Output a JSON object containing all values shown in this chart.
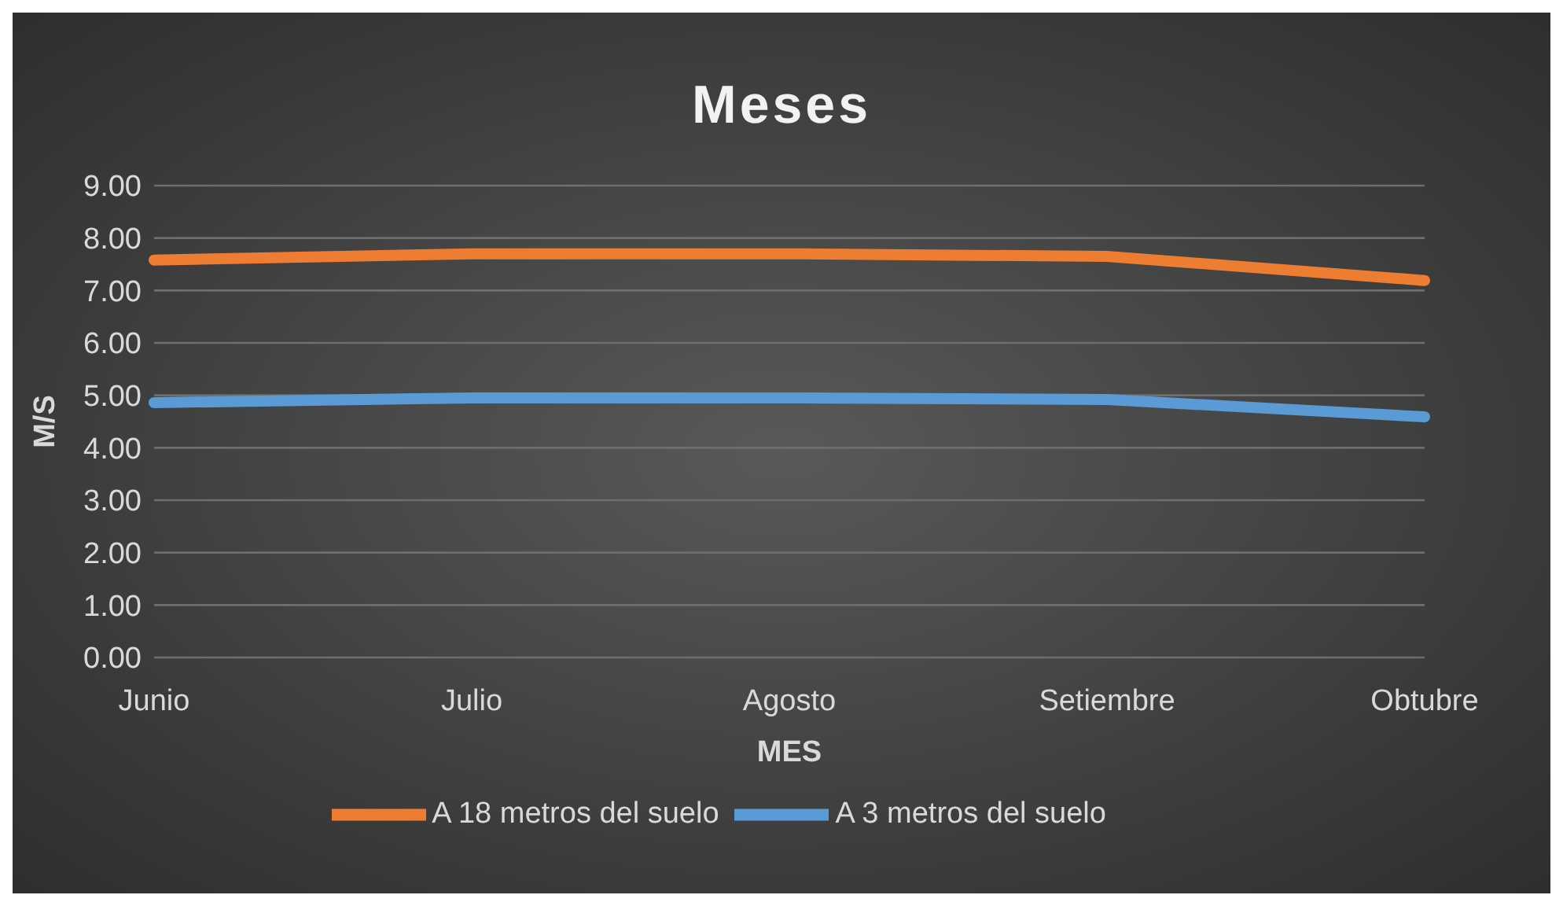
{
  "chart_data": {
    "type": "line",
    "title": "Meses",
    "xlabel": "MES",
    "ylabel": "M/S",
    "categories": [
      "Junio",
      "Julio",
      "Agosto",
      "Setiembre",
      "Obtubre"
    ],
    "series": [
      {
        "name": "A 3 metros del suelo",
        "color": "#5b9bd5",
        "values": [
          4.86,
          4.95,
          4.95,
          4.92,
          4.59
        ]
      },
      {
        "name": "A 18 metros del suelo",
        "color": "#ed7d31",
        "values": [
          7.58,
          7.7,
          7.7,
          7.65,
          7.19
        ]
      }
    ],
    "ylim": [
      0,
      9
    ],
    "yticks": [
      {
        "value": 0,
        "label": "0.00"
      },
      {
        "value": 1,
        "label": "1.00"
      },
      {
        "value": 2,
        "label": "2.00"
      },
      {
        "value": 3,
        "label": "3.00"
      },
      {
        "value": 4,
        "label": "4.00"
      },
      {
        "value": 5,
        "label": "5.00"
      },
      {
        "value": 6,
        "label": "6.00"
      },
      {
        "value": 7,
        "label": "7.00"
      },
      {
        "value": 8,
        "label": "8.00"
      },
      {
        "value": 9,
        "label": "9.00"
      }
    ],
    "grid": "y",
    "legend": "bottom",
    "marker": "none",
    "line_style": "solid"
  }
}
